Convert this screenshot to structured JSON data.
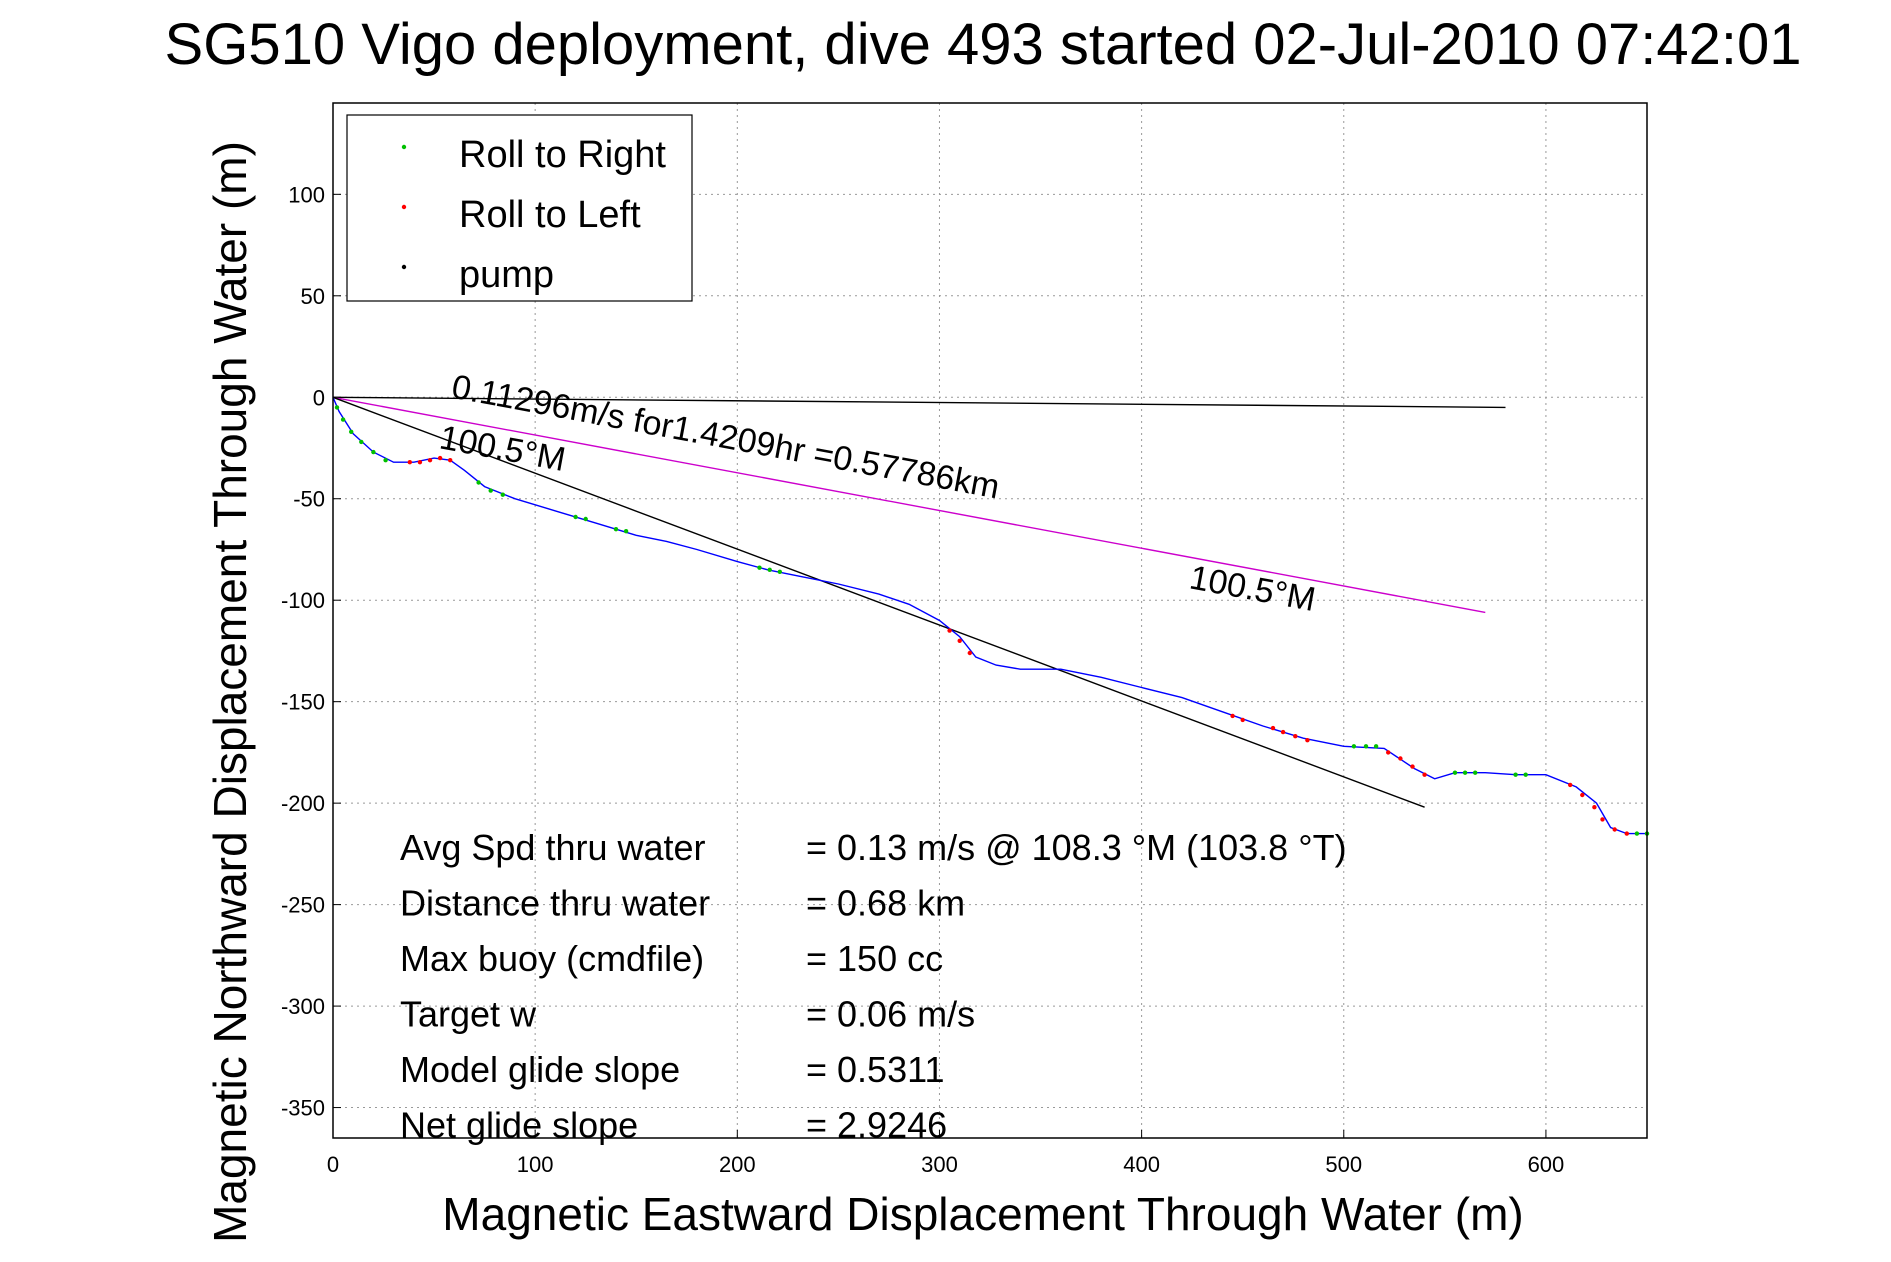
{
  "chart_data": {
    "type": "line",
    "title": "SG510 Vigo deployment, dive 493 started 02-Jul-2010 07:42:01",
    "xlabel": "Magnetic Eastward Displacement Through Water (m)",
    "ylabel": "Magnetic Northward Displacement Through Water (m)",
    "xlim": [
      0,
      650
    ],
    "ylim": [
      -365,
      145
    ],
    "xticks": [
      0,
      100,
      200,
      300,
      400,
      500,
      600
    ],
    "yticks": [
      100,
      50,
      0,
      -50,
      -100,
      -150,
      -200,
      -250,
      -300,
      -350
    ],
    "grid": true,
    "legend": {
      "placement": "top-left",
      "entries": [
        {
          "label": "Roll to Right",
          "color": "#00c000"
        },
        {
          "label": "Roll to Left",
          "color": "#ff0000"
        },
        {
          "label": "pump",
          "color": "#000000"
        }
      ]
    },
    "series": [
      {
        "color": "#0000ff",
        "points": [
          [
            0,
            0
          ],
          [
            3,
            -7
          ],
          [
            10,
            -18
          ],
          [
            20,
            -27
          ],
          [
            30,
            -32
          ],
          [
            40,
            -32
          ],
          [
            50,
            -30
          ],
          [
            58,
            -31
          ],
          [
            65,
            -36
          ],
          [
            75,
            -44
          ],
          [
            90,
            -50
          ],
          [
            110,
            -56
          ],
          [
            130,
            -62
          ],
          [
            150,
            -68
          ],
          [
            165,
            -71
          ],
          [
            180,
            -75
          ],
          [
            200,
            -81
          ],
          [
            215,
            -85
          ],
          [
            230,
            -88
          ],
          [
            250,
            -92
          ],
          [
            270,
            -97
          ],
          [
            285,
            -102
          ],
          [
            300,
            -110
          ],
          [
            310,
            -118
          ],
          [
            318,
            -128
          ],
          [
            328,
            -132
          ],
          [
            340,
            -134
          ],
          [
            360,
            -134
          ],
          [
            380,
            -138
          ],
          [
            400,
            -143
          ],
          [
            420,
            -148
          ],
          [
            440,
            -155
          ],
          [
            460,
            -162
          ],
          [
            480,
            -168
          ],
          [
            500,
            -172
          ],
          [
            520,
            -173
          ],
          [
            535,
            -183
          ],
          [
            545,
            -188
          ],
          [
            555,
            -185
          ],
          [
            570,
            -185
          ],
          [
            585,
            -186
          ],
          [
            600,
            -186
          ],
          [
            615,
            -192
          ],
          [
            625,
            -200
          ],
          [
            632,
            -212
          ],
          [
            640,
            -215
          ],
          [
            650,
            -215
          ]
        ]
      },
      {
        "name": "Roll to Right",
        "color": "#00c000",
        "points": [
          [
            2,
            -5
          ],
          [
            5,
            -11
          ],
          [
            9,
            -17
          ],
          [
            14,
            -22
          ],
          [
            20,
            -27
          ],
          [
            26,
            -31
          ],
          [
            72,
            -42
          ],
          [
            78,
            -46
          ],
          [
            84,
            -48
          ],
          [
            120,
            -59
          ],
          [
            125,
            -60
          ],
          [
            140,
            -65
          ],
          [
            145,
            -66
          ],
          [
            211,
            -84
          ],
          [
            216,
            -85
          ],
          [
            221,
            -86
          ],
          [
            505,
            -172
          ],
          [
            511,
            -172
          ],
          [
            516,
            -172
          ],
          [
            555,
            -185
          ],
          [
            560,
            -185
          ],
          [
            565,
            -185
          ],
          [
            585,
            -186
          ],
          [
            590,
            -186
          ],
          [
            645,
            -215
          ],
          [
            650,
            -215
          ]
        ]
      },
      {
        "name": "Roll to Left",
        "color": "#ff0000",
        "points": [
          [
            38,
            -32
          ],
          [
            43,
            -32
          ],
          [
            48,
            -31
          ],
          [
            53,
            -30
          ],
          [
            58,
            -31
          ],
          [
            305,
            -115
          ],
          [
            310,
            -120
          ],
          [
            315,
            -126
          ],
          [
            445,
            -157
          ],
          [
            450,
            -159
          ],
          [
            465,
            -163
          ],
          [
            470,
            -165
          ],
          [
            476,
            -167
          ],
          [
            482,
            -169
          ],
          [
            522,
            -175
          ],
          [
            528,
            -178
          ],
          [
            534,
            -182
          ],
          [
            540,
            -186
          ],
          [
            612,
            -191
          ],
          [
            618,
            -196
          ],
          [
            624,
            -202
          ],
          [
            628,
            -208
          ],
          [
            634,
            -213
          ],
          [
            640,
            -215
          ]
        ]
      },
      {
        "name": "pump",
        "color": "#000000",
        "points": []
      }
    ],
    "reference_lines": [
      {
        "color": "#000000",
        "points": [
          [
            0,
            0
          ],
          [
            580,
            -5
          ]
        ]
      },
      {
        "color": "#cc00cc",
        "points": [
          [
            0,
            0
          ],
          [
            570,
            -106
          ]
        ]
      },
      {
        "color": "#000000",
        "points": [
          [
            0,
            0
          ],
          [
            540,
            -202
          ]
        ]
      }
    ],
    "annotations": [
      {
        "text": "0.11296m/s for1.4209hr =0.57786km",
        "x": 58,
        "y": 0,
        "angle": 10.5
      },
      {
        "text": "100.5°M",
        "x": 52,
        "y": -25,
        "angle": 10.5
      },
      {
        "text": "100.5°M",
        "x": 423,
        "y": -94,
        "angle": 10.5
      }
    ],
    "stats": [
      {
        "label": "Avg Spd thru water",
        "value": "=  0.13 m/s @ 108.3 °M (103.8 °T)"
      },
      {
        "label": "Distance thru water",
        "value": "=  0.68 km"
      },
      {
        "label": "Max buoy (cmdfile)",
        "value": "= 150 cc"
      },
      {
        "label": "Target w",
        "value": "= 0.06 m/s"
      },
      {
        "label": "Model glide slope",
        "value": "= 0.5311"
      },
      {
        "label": "Net glide slope",
        "value": "= 2.9246"
      }
    ]
  }
}
